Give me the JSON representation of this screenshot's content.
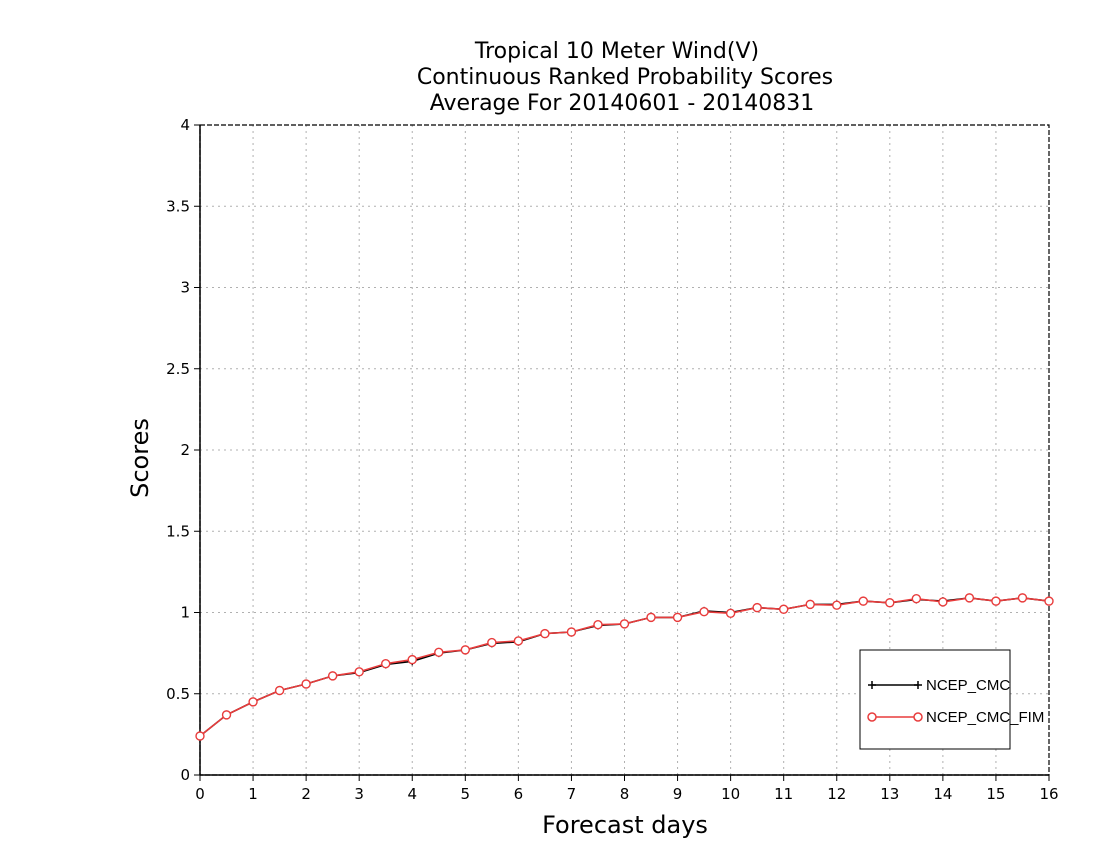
{
  "chart_data": {
    "type": "line",
    "title_lines": [
      "Tropical 10 Meter Wind(V)",
      "Continuous Ranked Probability Scores",
      "Average For 20140601 - 20140831"
    ],
    "xlabel": "Forecast days",
    "ylabel": "Scores",
    "xlim": [
      0,
      16
    ],
    "ylim": [
      0,
      4
    ],
    "x_ticks": [
      "0",
      "1",
      "2",
      "3",
      "4",
      "5",
      "6",
      "7",
      "8",
      "9",
      "10",
      "11",
      "12",
      "13",
      "14",
      "15",
      "16"
    ],
    "y_ticks": [
      "0",
      "0.5",
      "1",
      "1.5",
      "2",
      "2.5",
      "3",
      "3.5",
      "4"
    ],
    "grid": true,
    "legend_position": "bottom-right",
    "x": [
      0,
      0.5,
      1,
      1.5,
      2,
      2.5,
      3,
      3.5,
      4,
      4.5,
      5,
      5.5,
      6,
      6.5,
      7,
      7.5,
      8,
      8.5,
      9,
      9.5,
      10,
      10.5,
      11,
      11.5,
      12,
      12.5,
      13,
      13.5,
      14,
      14.5,
      15,
      15.5,
      16
    ],
    "series": [
      {
        "name": "NCEP_CMC",
        "color": "#000000",
        "marker": "plus",
        "values": [
          0.24,
          0.37,
          0.45,
          0.52,
          0.56,
          0.61,
          0.63,
          0.68,
          0.7,
          0.75,
          0.77,
          0.81,
          0.82,
          0.87,
          0.88,
          0.92,
          0.93,
          0.97,
          0.97,
          1.01,
          1.0,
          1.03,
          1.02,
          1.05,
          1.05,
          1.07,
          1.06,
          1.08,
          1.07,
          1.09,
          1.07,
          1.09,
          1.07
        ]
      },
      {
        "name": "NCEP_CMC_FIM",
        "color": "#e83c3c",
        "marker": "circle",
        "values": [
          0.24,
          0.37,
          0.45,
          0.52,
          0.56,
          0.61,
          0.635,
          0.685,
          0.71,
          0.755,
          0.77,
          0.815,
          0.825,
          0.87,
          0.88,
          0.925,
          0.93,
          0.97,
          0.97,
          1.005,
          0.995,
          1.03,
          1.02,
          1.05,
          1.045,
          1.07,
          1.06,
          1.085,
          1.065,
          1.09,
          1.07,
          1.09,
          1.07
        ]
      }
    ]
  }
}
